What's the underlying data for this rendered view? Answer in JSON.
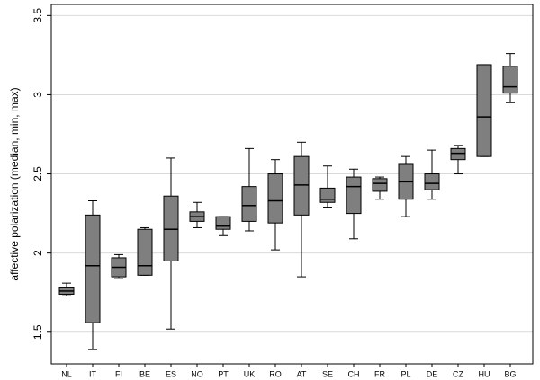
{
  "chart_data": {
    "type": "box",
    "y_label": "affective polarization (median, min, max)",
    "categories": [
      "NL",
      "IT",
      "FI",
      "BE",
      "ES",
      "NO",
      "PT",
      "UK",
      "RO",
      "AT",
      "SE",
      "CH",
      "FR",
      "PL",
      "DE",
      "CZ",
      "HU",
      "BG"
    ],
    "min": [
      1.73,
      1.39,
      1.84,
      1.86,
      1.52,
      2.16,
      2.11,
      2.14,
      2.02,
      1.85,
      2.29,
      2.09,
      2.34,
      2.23,
      2.34,
      2.5,
      2.61,
      2.95
    ],
    "q1": [
      1.74,
      1.56,
      1.85,
      1.86,
      1.95,
      2.2,
      2.15,
      2.2,
      2.19,
      2.24,
      2.32,
      2.25,
      2.39,
      2.34,
      2.4,
      2.59,
      2.61,
      3.01
    ],
    "median": [
      1.76,
      1.92,
      1.91,
      1.92,
      2.15,
      2.23,
      2.17,
      2.3,
      2.33,
      2.43,
      2.34,
      2.42,
      2.44,
      2.45,
      2.44,
      2.63,
      2.86,
      3.05
    ],
    "q3": [
      1.78,
      2.24,
      1.97,
      2.15,
      2.36,
      2.26,
      2.23,
      2.42,
      2.5,
      2.61,
      2.41,
      2.48,
      2.47,
      2.56,
      2.5,
      2.66,
      3.19,
      3.18
    ],
    "max": [
      1.81,
      2.33,
      1.99,
      2.16,
      2.6,
      2.32,
      2.23,
      2.66,
      2.59,
      2.7,
      2.55,
      2.53,
      2.48,
      2.61,
      2.65,
      2.68,
      3.19,
      3.26
    ],
    "color": "#7f7f7f",
    "ylim": [
      1.3,
      3.57
    ],
    "yticks": [
      1.5,
      2,
      2.5,
      3,
      3.5
    ],
    "grid": true
  }
}
